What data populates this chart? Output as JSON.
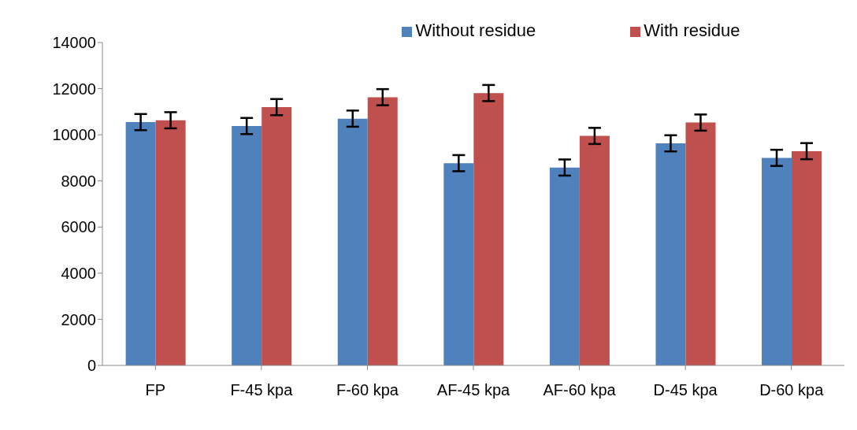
{
  "chart_data": {
    "type": "bar",
    "categories": [
      "FP",
      "F-45 kpa",
      "F-60 kpa",
      "AF-45 kpa",
      "AF-60 kpa",
      "D-45 kpa",
      "D-60 kpa"
    ],
    "series": [
      {
        "name": "Without residue",
        "color": "#4f81bd",
        "values": [
          10550,
          10380,
          10700,
          8770,
          8580,
          9630,
          9000
        ],
        "errors": [
          350,
          350,
          350,
          350,
          350,
          350,
          350
        ]
      },
      {
        "name": "With residue",
        "color": "#c0504d",
        "values": [
          10630,
          11200,
          11630,
          11810,
          9950,
          10530,
          9290
        ],
        "errors": [
          350,
          350,
          350,
          350,
          350,
          350,
          350
        ]
      }
    ],
    "ylim": [
      0,
      14000
    ],
    "yticks": [
      0,
      2000,
      4000,
      6000,
      8000,
      10000,
      12000,
      14000
    ],
    "grid": false,
    "legend": "top"
  }
}
